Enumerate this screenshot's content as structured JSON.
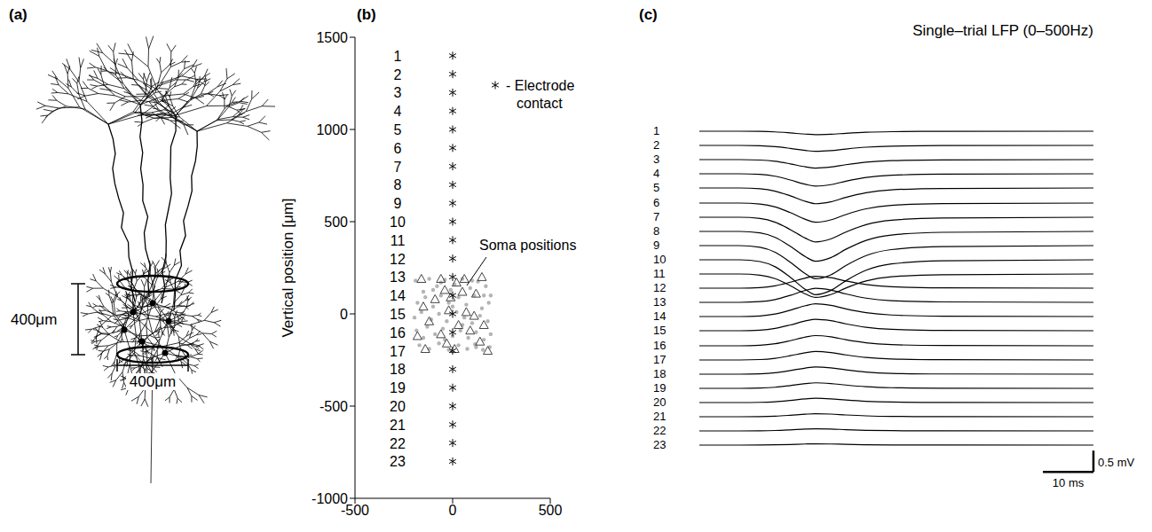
{
  "diagram": {
    "panel": "(a)",
    "scale_bars": [
      {
        "length": 400,
        "label": "400μm",
        "orientation": "vertical"
      },
      {
        "length": 400,
        "label": "400μm",
        "orientation": "horizontal"
      }
    ]
  },
  "chart_data": [
    {
      "panel": "(b)",
      "type": "scatter",
      "ylabel": "Vertical position [μm]",
      "xlim": [
        -500,
        500
      ],
      "xticks": [
        -500,
        0,
        500
      ],
      "ylim": [
        -1000,
        1500
      ],
      "yticks": [
        -1000,
        -500,
        0,
        500,
        1000,
        1500
      ],
      "grid": false,
      "legend": "upper right",
      "annotations": [
        {
          "text": "Soma positions"
        }
      ],
      "series": [
        {
          "marker": "circle",
          "color": "#b4b4b4",
          "x": [
            -190,
            -150,
            -120,
            -80,
            -40,
            10,
            50,
            90,
            130,
            170,
            195,
            -180,
            -140,
            -100,
            -60,
            -20,
            30,
            70,
            110,
            150,
            185,
            -195,
            -160,
            -110,
            -70,
            -30,
            20,
            60,
            100,
            140,
            180,
            -185,
            -130,
            -90,
            -50,
            0,
            40,
            80,
            120,
            160,
            195,
            -170,
            -120,
            -70,
            -20,
            30,
            75,
            115,
            155,
            190,
            -60,
            100,
            -150,
            -10,
            50,
            -100,
            160,
            -40,
            120,
            0
          ],
          "y": [
            180,
            120,
            190,
            150,
            185,
            160,
            190,
            140,
            175,
            150,
            100,
            60,
            90,
            40,
            100,
            60,
            90,
            50,
            100,
            30,
            60,
            -20,
            10,
            -30,
            0,
            -40,
            10,
            -20,
            -50,
            -10,
            -40,
            -90,
            -70,
            -110,
            -80,
            -120,
            -90,
            -130,
            -100,
            -140,
            -110,
            -170,
            -190,
            -160,
            -195,
            -170,
            -190,
            -165,
            -195,
            -180,
            170,
            180,
            -130,
            130,
            -60,
            130,
            100,
            -140,
            -180,
            40
          ]
        },
        {
          "marker": "triangle",
          "color": "#444444",
          "x": [
            -160,
            -60,
            60,
            150,
            -40,
            20,
            120,
            -90,
            -150,
            70,
            -20,
            110,
            -120,
            30,
            -180,
            90,
            -60,
            160,
            -140,
            10,
            180,
            -30,
            140,
            -10,
            50
          ],
          "y": [
            190,
            190,
            190,
            200,
            130,
            170,
            110,
            80,
            40,
            10,
            20,
            -10,
            -40,
            -60,
            -120,
            -90,
            -110,
            -60,
            -190,
            -190,
            -200,
            -160,
            -150,
            90,
            120
          ]
        },
        {
          "name": "- Electrode contact",
          "marker": "star",
          "color": "#000000",
          "x": [
            0,
            0,
            0,
            0,
            0,
            0,
            0,
            0,
            0,
            0,
            0,
            0,
            0,
            0,
            0,
            0,
            0,
            0,
            0,
            0,
            0,
            0,
            0
          ],
          "y": [
            1400,
            1300,
            1200,
            1100,
            1000,
            900,
            800,
            700,
            600,
            500,
            400,
            300,
            200,
            100,
            0,
            -100,
            -200,
            -300,
            -400,
            -500,
            -600,
            -700,
            -800
          ],
          "labels": [
            "1",
            "2",
            "3",
            "4",
            "5",
            "6",
            "7",
            "8",
            "9",
            "10",
            "11",
            "12",
            "13",
            "14",
            "15",
            "16",
            "17",
            "18",
            "19",
            "20",
            "21",
            "22",
            "23"
          ]
        }
      ]
    },
    {
      "panel": "(c)",
      "type": "line",
      "title": "Single–trial LFP (0–500Hz)",
      "tick_labels": false,
      "grid": false,
      "x": [
        0,
        8,
        12,
        15,
        18,
        21,
        23,
        26,
        29,
        33,
        38,
        48,
        78
      ],
      "xlim": [
        0,
        78
      ],
      "ylim": [
        -1,
        1
      ],
      "scale_bar": {
        "x": 10,
        "x_label": "10 ms",
        "y": 0.5,
        "y_label": "0.5 mV"
      },
      "series": [
        {
          "name": "1",
          "color": "#000000",
          "values": [
            0,
            0,
            -0.004,
            -0.016,
            -0.04,
            -0.068,
            -0.08,
            -0.07,
            -0.048,
            -0.024,
            -0.01,
            -0.002,
            0
          ]
        },
        {
          "name": "2",
          "color": "#000000",
          "values": [
            0,
            0,
            -0.007,
            -0.028,
            -0.07,
            -0.119,
            -0.14,
            -0.123,
            -0.084,
            -0.042,
            -0.017,
            -0.004,
            0
          ]
        },
        {
          "name": "3",
          "color": "#000000",
          "values": [
            0,
            0,
            -0.01,
            -0.04,
            -0.1,
            -0.17,
            -0.2,
            -0.176,
            -0.12,
            -0.06,
            -0.024,
            -0.006,
            0
          ]
        },
        {
          "name": "4",
          "color": "#000000",
          "values": [
            0,
            0,
            -0.015,
            -0.058,
            -0.145,
            -0.247,
            -0.29,
            -0.255,
            -0.174,
            -0.087,
            -0.035,
            -0.009,
            0
          ]
        },
        {
          "name": "5",
          "color": "#000000",
          "values": [
            0,
            0,
            -0.019,
            -0.074,
            -0.185,
            -0.315,
            -0.37,
            -0.326,
            -0.222,
            -0.111,
            -0.044,
            -0.011,
            0
          ]
        },
        {
          "name": "6",
          "color": "#000000",
          "values": [
            0,
            0,
            -0.023,
            -0.09,
            -0.225,
            -0.383,
            -0.45,
            -0.396,
            -0.27,
            -0.135,
            -0.054,
            -0.014,
            0
          ]
        },
        {
          "name": "7",
          "color": "#000000",
          "values": [
            0,
            0,
            -0.029,
            -0.116,
            -0.29,
            -0.493,
            -0.58,
            -0.51,
            -0.348,
            -0.174,
            -0.07,
            -0.017,
            0
          ]
        },
        {
          "name": "8",
          "color": "#000000",
          "values": [
            0,
            0,
            -0.035,
            -0.14,
            -0.35,
            -0.595,
            -0.7,
            -0.616,
            -0.42,
            -0.21,
            -0.084,
            -0.021,
            0
          ]
        },
        {
          "name": "9",
          "color": "#000000",
          "values": [
            0,
            0,
            -0.039,
            -0.156,
            -0.39,
            -0.663,
            -0.78,
            -0.686,
            -0.468,
            -0.234,
            -0.094,
            -0.023,
            0
          ]
        },
        {
          "name": "10",
          "color": "#000000",
          "values": [
            0,
            0,
            -0.041,
            -0.164,
            -0.41,
            -0.697,
            -0.82,
            -0.722,
            -0.492,
            -0.246,
            -0.098,
            -0.025,
            0
          ]
        },
        {
          "name": "11",
          "color": "#000000",
          "values": [
            0,
            0,
            -0.028,
            -0.11,
            -0.275,
            -0.468,
            -0.55,
            -0.484,
            -0.33,
            -0.165,
            -0.066,
            -0.017,
            0
          ]
        },
        {
          "name": "12",
          "color": "#000000",
          "values": [
            0,
            0,
            0.014,
            0.056,
            0.14,
            0.238,
            0.28,
            0.246,
            0.168,
            0.084,
            0.034,
            0.008,
            0
          ]
        },
        {
          "name": "13",
          "color": "#000000",
          "values": [
            0,
            0,
            0.017,
            0.066,
            0.165,
            0.281,
            0.33,
            0.29,
            0.198,
            0.099,
            0.04,
            0.01,
            0
          ]
        },
        {
          "name": "14",
          "color": "#000000",
          "values": [
            0,
            0,
            0.015,
            0.06,
            0.15,
            0.255,
            0.3,
            0.264,
            0.18,
            0.09,
            0.036,
            0.009,
            0
          ]
        },
        {
          "name": "15",
          "color": "#000000",
          "values": [
            0,
            0,
            0.014,
            0.054,
            0.135,
            0.23,
            0.27,
            0.238,
            0.162,
            0.081,
            0.032,
            0.008,
            0
          ]
        },
        {
          "name": "16",
          "color": "#000000",
          "values": [
            0,
            0,
            0.012,
            0.048,
            0.12,
            0.204,
            0.24,
            0.211,
            0.144,
            0.072,
            0.029,
            0.007,
            0
          ]
        },
        {
          "name": "17",
          "color": "#000000",
          "values": [
            0,
            0,
            0.01,
            0.04,
            0.1,
            0.17,
            0.2,
            0.176,
            0.12,
            0.06,
            0.024,
            0.006,
            0
          ]
        },
        {
          "name": "18",
          "color": "#000000",
          "values": [
            0,
            0,
            0.009,
            0.034,
            0.085,
            0.145,
            0.17,
            0.15,
            0.102,
            0.051,
            0.02,
            0.005,
            0
          ]
        },
        {
          "name": "19",
          "color": "#000000",
          "values": [
            0,
            0,
            0.007,
            0.026,
            0.065,
            0.111,
            0.13,
            0.114,
            0.078,
            0.039,
            0.016,
            0.004,
            0
          ]
        },
        {
          "name": "20",
          "color": "#000000",
          "values": [
            0,
            0,
            0.005,
            0.02,
            0.05,
            0.085,
            0.1,
            0.088,
            0.06,
            0.03,
            0.012,
            0.003,
            0
          ]
        },
        {
          "name": "21",
          "color": "#000000",
          "values": [
            0,
            0,
            0.004,
            0.014,
            0.035,
            0.06,
            0.07,
            0.062,
            0.042,
            0.021,
            0.008,
            0.002,
            0
          ]
        },
        {
          "name": "22",
          "color": "#000000",
          "values": [
            0,
            0,
            0.003,
            0.01,
            0.025,
            0.043,
            0.05,
            0.044,
            0.03,
            0.015,
            0.006,
            0.002,
            0
          ]
        },
        {
          "name": "23",
          "color": "#000000",
          "values": [
            0,
            0,
            0.002,
            0.006,
            0.015,
            0.026,
            0.03,
            0.026,
            0.018,
            0.009,
            0.004,
            0.001,
            0
          ]
        }
      ]
    }
  ]
}
